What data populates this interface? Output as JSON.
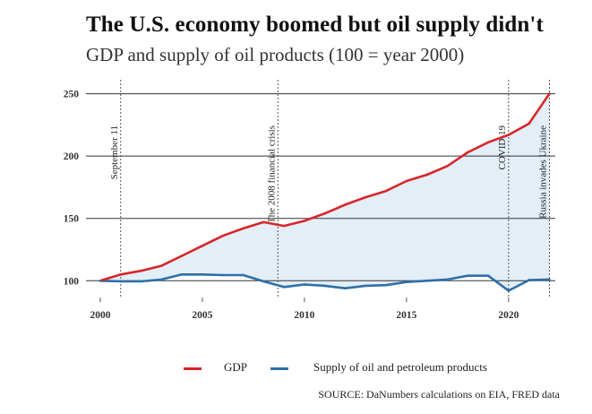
{
  "title": "The U.S. economy boomed but oil supply didn't",
  "subtitle": "GDP and supply of oil products (100 = year 2000)",
  "source": "SOURCE: DaNumbers calculations on EIA, FRED data",
  "colors": {
    "gdp": "#d7262b",
    "oil": "#2e6fa8",
    "fill": "#e3eef7",
    "grid": "#333333"
  },
  "chart_data": {
    "type": "line",
    "title": "The U.S. economy boomed but oil supply didn't",
    "subtitle": "GDP and supply of oil products (100 = year 2000)",
    "xlabel": "",
    "ylabel": "",
    "xlim": [
      1999.3,
      2022.2
    ],
    "ylim": [
      88,
      254
    ],
    "x_ticks": [
      2000,
      2005,
      2010,
      2015,
      2020
    ],
    "y_ticks": [
      100,
      150,
      200,
      250
    ],
    "x": [
      2000,
      2001,
      2002,
      2003,
      2004,
      2005,
      2006,
      2007,
      2008,
      2009,
      2010,
      2011,
      2012,
      2013,
      2014,
      2015,
      2016,
      2017,
      2018,
      2019,
      2020,
      2021,
      2022
    ],
    "series": [
      {
        "name": "GDP",
        "values": [
          100,
          105,
          108,
          112,
          120,
          128,
          136,
          142,
          147,
          144,
          148,
          154,
          161,
          167,
          172,
          180,
          185,
          192,
          203,
          211,
          217,
          226,
          250
        ]
      },
      {
        "name": "Supply of oil and petroleum products",
        "values": [
          100,
          99.5,
          99.5,
          101,
          105,
          105,
          104.5,
          104.5,
          99.5,
          95,
          97,
          96,
          94,
          96,
          96.5,
          99,
          100,
          101,
          104,
          104,
          92,
          100.5,
          101
        ]
      }
    ],
    "annotations": [
      {
        "x": 2001,
        "label": "September 11"
      },
      {
        "x": 2008.7,
        "label": "The 2008 financial crisis"
      },
      {
        "x": 2020,
        "label": "COVID-19"
      },
      {
        "x": 2022,
        "label": "Russia invades Ukraine"
      }
    ],
    "legend": "bottom"
  }
}
